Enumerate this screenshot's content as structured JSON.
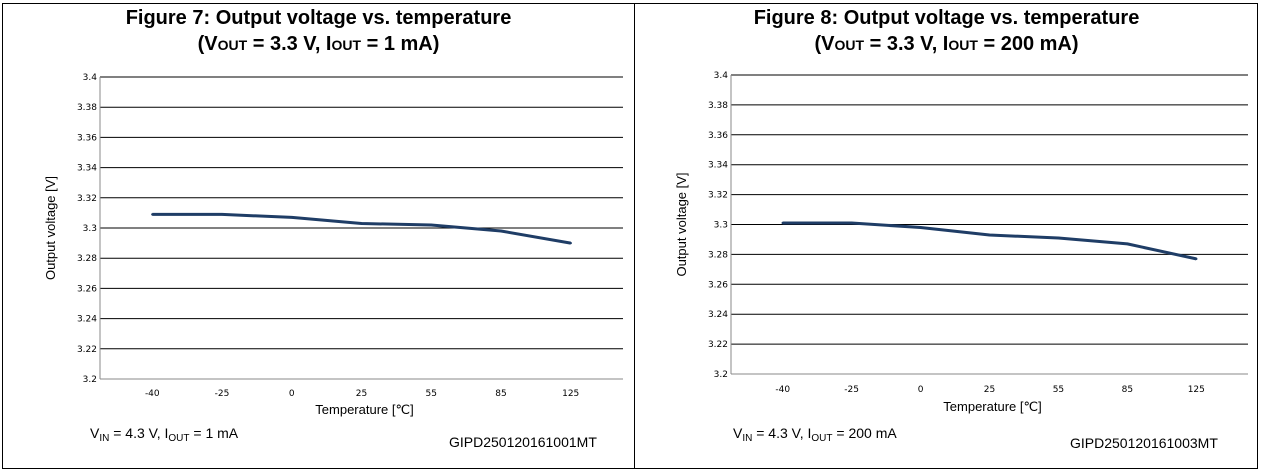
{
  "figures": [
    {
      "title_prefix": "Figure 7: Output voltage vs. temperature",
      "title_cond": {
        "open": "(V",
        "vout_sub": "OUT",
        "mid": " = 3.3 V, I",
        "iout_sub": "OUT",
        "end": " = 1 mA)"
      },
      "footer_cond": {
        "v": "V",
        "vin_sub": "IN",
        "mid": " = 4.3 V, I",
        "iout_sub": "OUT",
        "end": " = 1 mA"
      },
      "code": "GIPD250120161001MT"
    },
    {
      "title_prefix": "Figure 8: Output voltage vs. temperature",
      "title_cond": {
        "open": "(V",
        "vout_sub": "OUT",
        "mid": " = 3.3 V, I",
        "iout_sub": "OUT",
        "end": " = 200 mA)"
      },
      "footer_cond": {
        "v": "V",
        "vin_sub": "IN",
        "mid": " = 4.3 V, I",
        "iout_sub": "OUT",
        "end": " = 200 mA"
      },
      "code": "GIPD250120161003MT"
    }
  ],
  "chart_data": [
    {
      "type": "line",
      "title": "Figure 7: Output voltage vs. temperature (VOUT = 3.3 V, IOUT = 1 mA)",
      "xlabel": "Temperature [℃]",
      "ylabel": "Output voltage [V]",
      "categories": [
        "-40",
        "-25",
        "0",
        "25",
        "55",
        "85",
        "125"
      ],
      "series": [
        {
          "values": [
            3.309,
            3.309,
            3.307,
            3.303,
            3.302,
            3.298,
            3.29
          ],
          "color": "#1f3d66"
        }
      ],
      "ylim": [
        3.2,
        3.4
      ],
      "yticks": [
        "3.2",
        "3.22",
        "3.24",
        "3.26",
        "3.28",
        "3.3",
        "3.32",
        "3.34",
        "3.36",
        "3.38",
        "3.4"
      ],
      "grid": true
    },
    {
      "type": "line",
      "title": "Figure 8: Output voltage vs. temperature (VOUT = 3.3 V, IOUT = 200 mA)",
      "xlabel": "Temperature [℃]",
      "ylabel": "Output voltage [V]",
      "categories": [
        "-40",
        "-25",
        "0",
        "25",
        "55",
        "85",
        "125"
      ],
      "series": [
        {
          "values": [
            3.301,
            3.301,
            3.298,
            3.293,
            3.291,
            3.287,
            3.277
          ],
          "color": "#1f3d66"
        }
      ],
      "ylim": [
        3.2,
        3.4
      ],
      "yticks": [
        "3.2",
        "3.22",
        "3.24",
        "3.26",
        "3.28",
        "3.3",
        "3.32",
        "3.34",
        "3.36",
        "3.38",
        "3.4"
      ],
      "grid": true
    }
  ]
}
